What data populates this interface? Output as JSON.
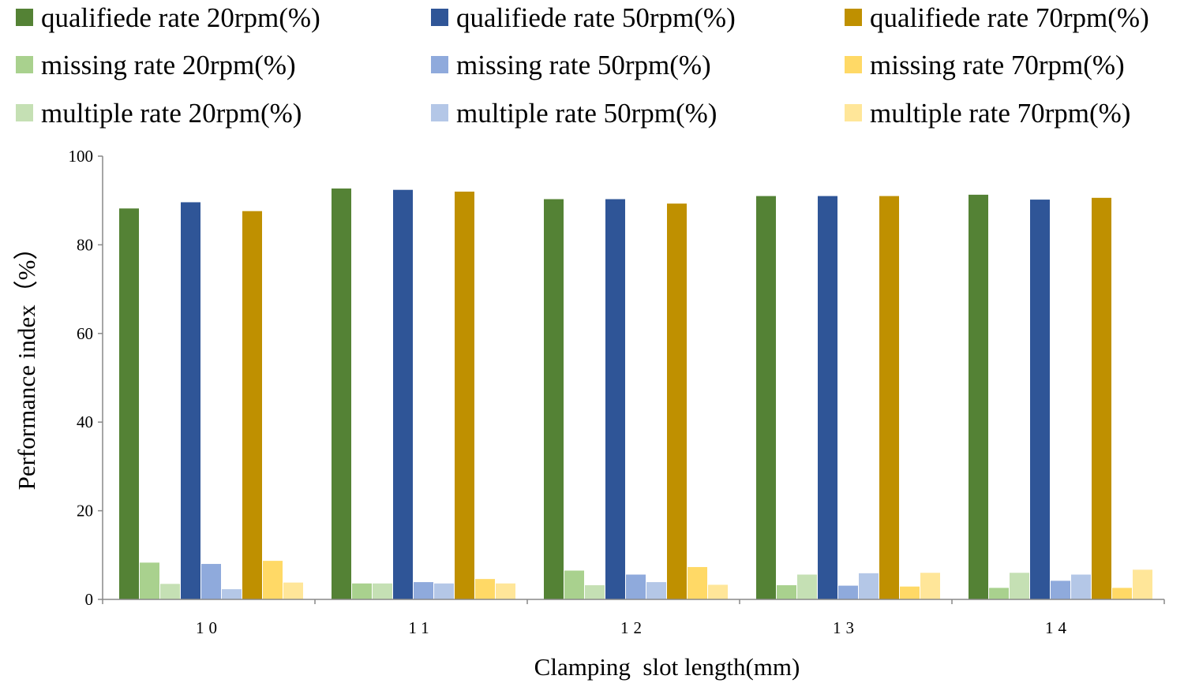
{
  "chart_data": {
    "type": "bar",
    "title": "",
    "xlabel": "Clamping  slot length(mm)",
    "ylabel": "Performance index（%）",
    "ylim": [
      0,
      100
    ],
    "yticks": [
      0,
      20,
      40,
      60,
      80,
      100
    ],
    "grid": false,
    "legend_position": "top",
    "categories": [
      "10",
      "11",
      "12",
      "13",
      "14"
    ],
    "series": [
      {
        "name": "qualifiede rate 20rpm(%)",
        "color": "#548235",
        "values": [
          88.2,
          92.7,
          90.3,
          91.0,
          91.3
        ]
      },
      {
        "name": "missing rate 20rpm(%)",
        "color": "#A9D18E",
        "values": [
          8.3,
          3.6,
          6.5,
          3.2,
          2.6
        ]
      },
      {
        "name": "multiple rate 20rpm(%)",
        "color": "#C5E0B4",
        "values": [
          3.5,
          3.6,
          3.2,
          5.6,
          6.0
        ]
      },
      {
        "name": "qualifiede rate 50rpm(%)",
        "color": "#2F5597",
        "values": [
          89.6,
          92.4,
          90.3,
          91.0,
          90.2
        ]
      },
      {
        "name": "missing rate 50rpm(%)",
        "color": "#8FAADC",
        "values": [
          8.0,
          3.9,
          5.6,
          3.1,
          4.2
        ]
      },
      {
        "name": "multiple rate 50rpm(%)",
        "color": "#B4C7E7",
        "values": [
          2.3,
          3.6,
          3.9,
          5.9,
          5.6
        ]
      },
      {
        "name": "qualifiede rate 70rpm(%)",
        "color": "#BF9000",
        "values": [
          87.6,
          92.0,
          89.3,
          91.0,
          90.6
        ]
      },
      {
        "name": "missing rate 70rpm(%)",
        "color": "#FFD966",
        "values": [
          8.7,
          4.6,
          7.3,
          2.9,
          2.6
        ]
      },
      {
        "name": "multiple rate 70rpm(%)",
        "color": "#FFE699",
        "values": [
          3.8,
          3.6,
          3.3,
          6.0,
          6.7
        ]
      }
    ]
  }
}
